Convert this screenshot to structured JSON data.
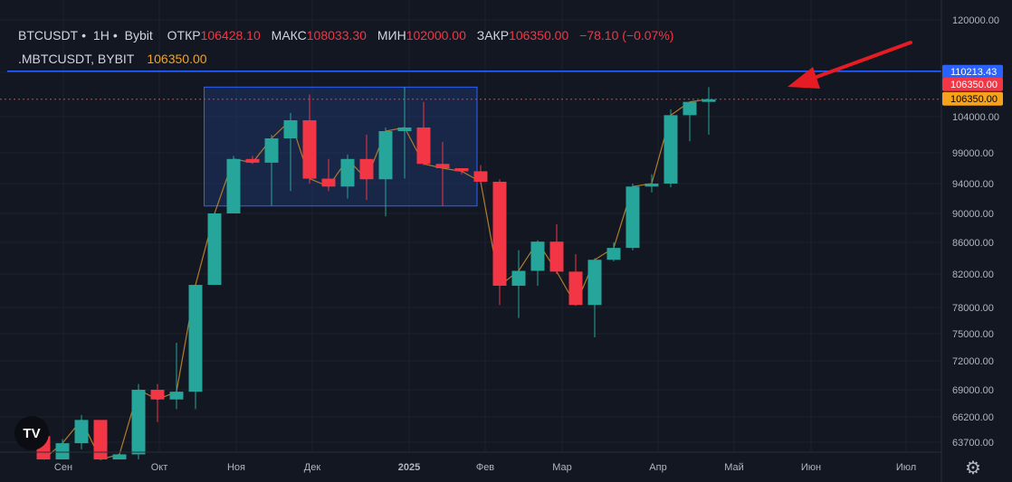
{
  "legend": {
    "symbol": "BTCUSDT",
    "interval": "1H",
    "exchange": "Bybit",
    "open_label": "ОТКР",
    "open": "106428.10",
    "high_label": "МАКС",
    "high": "108033.30",
    "low_label": "МИН",
    "low": "102000.00",
    "close_label": "ЗАКР",
    "close": "106350.00",
    "change": "−78.10 (−0.07%)",
    "sub_symbol": ".MBTCUSDT, BYBIT",
    "sub_value": "106350.00"
  },
  "logo_text": "TV",
  "settings_icon": "gear-icon",
  "colors": {
    "background": "#131722",
    "up": "#26a69a",
    "down": "#f23645",
    "line": "#b07c2a",
    "hline": "#2962ff",
    "box_fill": "#1e3a78",
    "box_stroke": "#2962ff",
    "arrow": "#e51c23",
    "grid": "#1e222d",
    "axis_text": "#b2b5be",
    "orange": "#f7a21b"
  },
  "chart_data": {
    "type": "candlestick",
    "y_ticks": [
      "120000.00",
      "110000.00",
      "104000.00",
      "99000.00",
      "94000.00",
      "90000.00",
      "86000.00",
      "82000.00",
      "78000.00",
      "75000.00",
      "72000.00",
      "69000.00",
      "66200.00",
      "63700.00"
    ],
    "x_ticks": [
      "Сен",
      "Окт",
      "Ноя",
      "Дек",
      "2025",
      "Фев",
      "Мар",
      "Апр",
      "Май",
      "Июн",
      "Июл"
    ],
    "ylim": [
      62000,
      121000
    ],
    "candles": [
      {
        "o": 64300,
        "h": 64400,
        "l": 62000,
        "c": 62000
      },
      {
        "o": 62000,
        "h": 64000,
        "l": 62000,
        "c": 63600
      },
      {
        "o": 63600,
        "h": 66400,
        "l": 63000,
        "c": 65900
      },
      {
        "o": 65900,
        "h": 65900,
        "l": 62000,
        "c": 62000
      },
      {
        "o": 62000,
        "h": 62500,
        "l": 62000,
        "c": 62500
      },
      {
        "o": 62500,
        "h": 69600,
        "l": 62000,
        "c": 69000
      },
      {
        "o": 69000,
        "h": 69600,
        "l": 65700,
        "c": 68000
      },
      {
        "o": 68000,
        "h": 74000,
        "l": 67000,
        "c": 68800
      },
      {
        "o": 68800,
        "h": 80700,
        "l": 67000,
        "c": 80700
      },
      {
        "o": 80700,
        "h": 90000,
        "l": 80700,
        "c": 90000
      },
      {
        "o": 90000,
        "h": 98500,
        "l": 90000,
        "c": 98000
      },
      {
        "o": 98000,
        "h": 98500,
        "l": 97200,
        "c": 97400
      },
      {
        "o": 97400,
        "h": 101500,
        "l": 91000,
        "c": 101000
      },
      {
        "o": 101000,
        "h": 104500,
        "l": 93000,
        "c": 103500
      },
      {
        "o": 103500,
        "h": 107000,
        "l": 94000,
        "c": 94800
      },
      {
        "o": 94800,
        "h": 98000,
        "l": 93000,
        "c": 93600
      },
      {
        "o": 93600,
        "h": 98700,
        "l": 92000,
        "c": 98000
      },
      {
        "o": 98000,
        "h": 101500,
        "l": 91800,
        "c": 94700
      },
      {
        "o": 94700,
        "h": 102500,
        "l": 89600,
        "c": 102000
      },
      {
        "o": 102000,
        "h": 108000,
        "l": 94800,
        "c": 102500
      },
      {
        "o": 102500,
        "h": 106000,
        "l": 97000,
        "c": 97200
      },
      {
        "o": 97200,
        "h": 100500,
        "l": 91000,
        "c": 96500
      },
      {
        "o": 96500,
        "h": 96500,
        "l": 95500,
        "c": 96000
      },
      {
        "o": 96000,
        "h": 97000,
        "l": 94000,
        "c": 94300
      },
      {
        "o": 94300,
        "h": 94700,
        "l": 78300,
        "c": 80600
      },
      {
        "o": 80600,
        "h": 85000,
        "l": 76800,
        "c": 82400
      },
      {
        "o": 82400,
        "h": 86300,
        "l": 80600,
        "c": 86100
      },
      {
        "o": 86100,
        "h": 88500,
        "l": 82000,
        "c": 82300
      },
      {
        "o": 82300,
        "h": 84500,
        "l": 78300,
        "c": 78300
      },
      {
        "o": 78300,
        "h": 84000,
        "l": 74600,
        "c": 83800
      },
      {
        "o": 83800,
        "h": 86000,
        "l": 83600,
        "c": 85300
      },
      {
        "o": 85300,
        "h": 94000,
        "l": 85000,
        "c": 93600
      },
      {
        "o": 93600,
        "h": 95500,
        "l": 92800,
        "c": 94000
      },
      {
        "o": 94000,
        "h": 105000,
        "l": 93500,
        "c": 104200
      },
      {
        "o": 104200,
        "h": 106000,
        "l": 100600,
        "c": 106000
      },
      {
        "o": 106000,
        "h": 108000,
        "l": 101500,
        "c": 106350
      }
    ],
    "last_price": 106350.0,
    "hline": {
      "value": 110213.43,
      "label": "110213.43"
    },
    "price_labels": [
      "106350.00",
      "106350.00"
    ],
    "range_box": {
      "from_index": 9,
      "to_index": 23,
      "top": 108000,
      "bottom": 91000
    }
  }
}
